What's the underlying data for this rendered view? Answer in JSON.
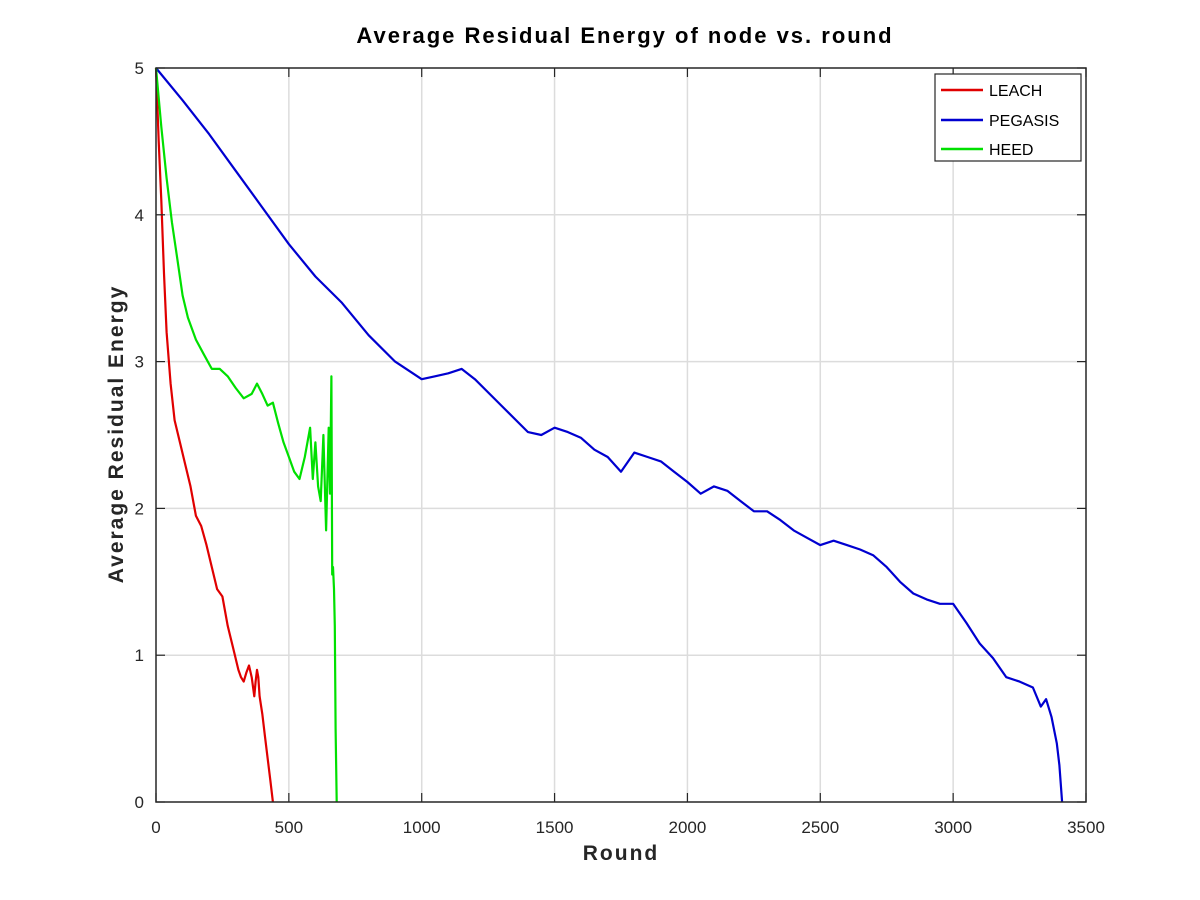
{
  "chart_data": {
    "type": "line",
    "title": "Average Residual Energy of node vs. round",
    "xlabel": "Round",
    "ylabel": "Average Residual Energy",
    "xlim": [
      0,
      3500
    ],
    "ylim": [
      0,
      5
    ],
    "xticks": [
      0,
      500,
      1000,
      1500,
      2000,
      2500,
      3000,
      3500
    ],
    "yticks": [
      0,
      1,
      2,
      3,
      4,
      5
    ],
    "grid": true,
    "legend_position": "top-right",
    "series": [
      {
        "name": "LEACH",
        "color": "#e00000",
        "x": [
          0,
          10,
          20,
          30,
          40,
          55,
          70,
          90,
          110,
          130,
          150,
          170,
          190,
          210,
          230,
          250,
          270,
          290,
          310,
          320,
          330,
          340,
          350,
          360,
          370,
          375,
          380,
          385,
          390,
          400,
          410,
          420,
          430,
          440
        ],
        "y": [
          5.0,
          4.5,
          4.1,
          3.6,
          3.2,
          2.85,
          2.6,
          2.45,
          2.3,
          2.15,
          1.95,
          1.88,
          1.75,
          1.6,
          1.45,
          1.4,
          1.2,
          1.05,
          0.9,
          0.85,
          0.82,
          0.88,
          0.93,
          0.85,
          0.72,
          0.82,
          0.9,
          0.85,
          0.72,
          0.6,
          0.45,
          0.3,
          0.15,
          0.0
        ]
      },
      {
        "name": "PEGASIS",
        "color": "#0000d0",
        "x": [
          0,
          100,
          200,
          300,
          400,
          500,
          600,
          700,
          800,
          900,
          1000,
          1050,
          1100,
          1150,
          1200,
          1300,
          1400,
          1450,
          1500,
          1550,
          1600,
          1650,
          1700,
          1750,
          1800,
          1850,
          1900,
          1950,
          2000,
          2050,
          2100,
          2150,
          2200,
          2250,
          2300,
          2350,
          2400,
          2450,
          2500,
          2550,
          2600,
          2650,
          2700,
          2750,
          2800,
          2850,
          2900,
          2950,
          3000,
          3050,
          3100,
          3150,
          3200,
          3250,
          3300,
          3330,
          3350,
          3370,
          3390,
          3400,
          3410
        ],
        "y": [
          5.0,
          4.78,
          4.55,
          4.3,
          4.05,
          3.8,
          3.58,
          3.4,
          3.18,
          3.0,
          2.88,
          2.9,
          2.92,
          2.95,
          2.88,
          2.7,
          2.52,
          2.5,
          2.55,
          2.52,
          2.48,
          2.4,
          2.35,
          2.25,
          2.38,
          2.35,
          2.32,
          2.25,
          2.18,
          2.1,
          2.15,
          2.12,
          2.05,
          1.98,
          1.98,
          1.92,
          1.85,
          1.8,
          1.75,
          1.78,
          1.75,
          1.72,
          1.68,
          1.6,
          1.5,
          1.42,
          1.38,
          1.35,
          1.35,
          1.22,
          1.08,
          0.98,
          0.85,
          0.82,
          0.78,
          0.65,
          0.7,
          0.58,
          0.4,
          0.25,
          0.0
        ]
      },
      {
        "name": "HEED",
        "color": "#00e000",
        "x": [
          0,
          20,
          40,
          60,
          80,
          100,
          120,
          150,
          180,
          210,
          240,
          270,
          300,
          330,
          360,
          380,
          400,
          420,
          440,
          460,
          480,
          500,
          520,
          540,
          560,
          580,
          590,
          600,
          610,
          620,
          630,
          640,
          650,
          655,
          660,
          663,
          666,
          670,
          673,
          676,
          680
        ],
        "y": [
          5.0,
          4.6,
          4.25,
          3.95,
          3.7,
          3.45,
          3.3,
          3.15,
          3.05,
          2.95,
          2.95,
          2.9,
          2.82,
          2.75,
          2.78,
          2.85,
          2.78,
          2.7,
          2.72,
          2.58,
          2.45,
          2.35,
          2.25,
          2.2,
          2.35,
          2.55,
          2.2,
          2.45,
          2.15,
          2.05,
          2.5,
          1.85,
          2.55,
          2.1,
          2.9,
          1.55,
          1.6,
          1.45,
          1.2,
          0.5,
          0.0
        ]
      }
    ]
  }
}
